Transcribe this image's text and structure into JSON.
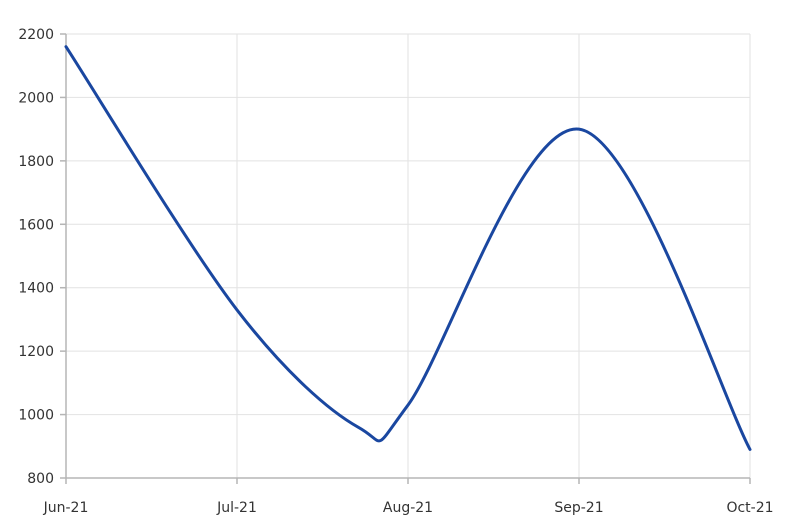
{
  "chart_data": {
    "type": "line",
    "title": "",
    "xlabel": "",
    "ylabel": "",
    "x_ticks": [
      "Jun-21",
      "Jul-21",
      "Aug-21",
      "Sep-21",
      "Oct-21"
    ],
    "ylim": [
      800,
      2200
    ],
    "y_ticks": [
      800,
      1000,
      1200,
      1400,
      1600,
      1800,
      2000,
      2200
    ],
    "grid": true,
    "legend": "none",
    "series": [
      {
        "color": "#1a47a0",
        "x": [
          "2021-06-01",
          "2021-07-01",
          "2021-07-23",
          "2021-08-01",
          "2021-09-01",
          "2021-10-01"
        ],
        "y": [
          2160,
          1330,
          960,
          1030,
          1900,
          890
        ]
      }
    ]
  }
}
